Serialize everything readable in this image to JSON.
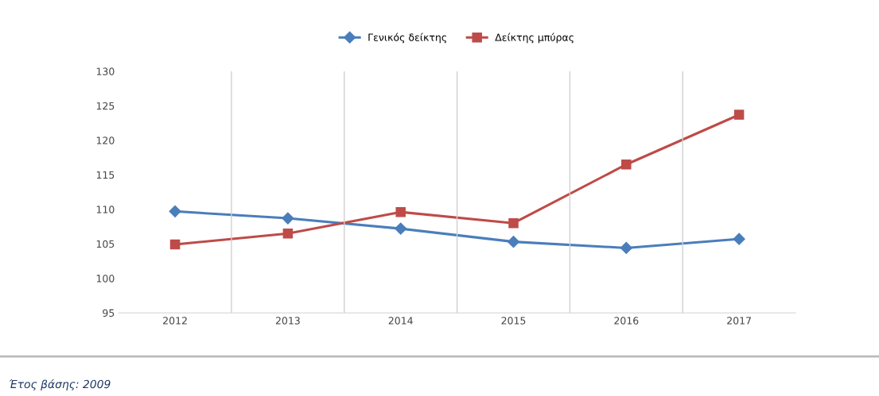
{
  "chart_data": {
    "type": "line",
    "categories": [
      "2012",
      "2013",
      "2014",
      "2015",
      "2016",
      "2017"
    ],
    "series": [
      {
        "name": "Γενικός δείκτης",
        "color": "#4a7ebb",
        "marker": "diamond",
        "values": [
          109.7,
          108.7,
          107.2,
          105.3,
          104.4,
          105.7
        ]
      },
      {
        "name": "Δείκτης μπύρας",
        "color": "#be4b48",
        "marker": "square",
        "values": [
          104.9,
          106.5,
          109.6,
          108.0,
          116.5,
          123.7
        ]
      }
    ],
    "ylim": [
      95,
      130
    ],
    "yticks": [
      95,
      100,
      105,
      110,
      115,
      120,
      125,
      130
    ],
    "grid": "x",
    "legend": "top",
    "annotations": [
      "Έτος βάσης: 2009"
    ]
  }
}
